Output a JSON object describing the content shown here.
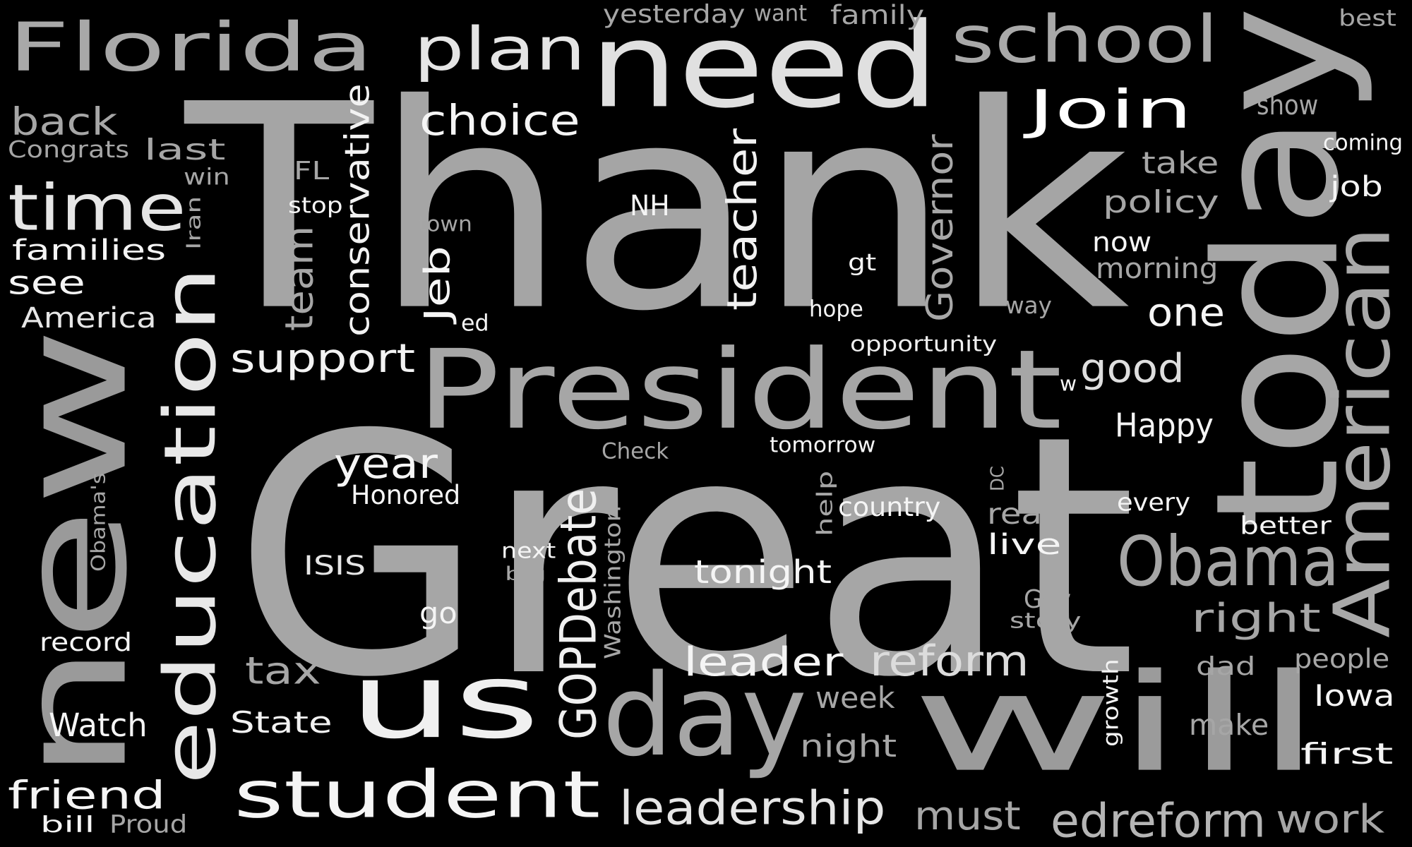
{
  "words": [
    {
      "text": "Thank",
      "color": "#a5a5a5"
    },
    {
      "text": "Great",
      "color": "#a6a6a6"
    },
    {
      "text": "need",
      "color": "#e0e0e0"
    },
    {
      "text": "new",
      "color": "#9a9a9a"
    },
    {
      "text": "today",
      "color": "#a6a6a6"
    },
    {
      "text": "will",
      "color": "#9b9b9b"
    },
    {
      "text": "President",
      "color": "#a6a6a6"
    },
    {
      "text": "us",
      "color": "#f0f0f0"
    },
    {
      "text": "education",
      "color": "#e8e8e8"
    },
    {
      "text": "student",
      "color": "#f5f5f5"
    },
    {
      "text": "day",
      "color": "#a6a6a6"
    },
    {
      "text": "American",
      "color": "#a9a9a9"
    },
    {
      "text": "Florida",
      "color": "#a8a8a8"
    },
    {
      "text": "school",
      "color": "#a9a9a9"
    },
    {
      "text": "plan",
      "color": "#e5e5e5"
    },
    {
      "text": "Join",
      "color": "#ffffff"
    },
    {
      "text": "Obama",
      "color": "#a5a5a5"
    },
    {
      "text": "time",
      "color": "#e6e6e6"
    },
    {
      "text": "GOPDebate",
      "color": "#f0f0f0"
    },
    {
      "text": "support",
      "color": "#f3f3f3"
    },
    {
      "text": "leader",
      "color": "#f5f5f5"
    },
    {
      "text": "reform",
      "color": "#dcdcdc"
    },
    {
      "text": "edreform",
      "color": "#b5b5b5"
    },
    {
      "text": "leadership",
      "color": "#e6e6e6"
    },
    {
      "text": "choice",
      "color": "#f5f5f5"
    },
    {
      "text": "back",
      "color": "#a6a6a6"
    },
    {
      "text": "teacher",
      "color": "#f2f2f2"
    },
    {
      "text": "conservative",
      "color": "#f2f2f2"
    },
    {
      "text": "Governor",
      "color": "#a8a8a8"
    },
    {
      "text": "team",
      "color": "#a6a6a6"
    },
    {
      "text": "friend",
      "color": "#f5f5f5"
    },
    {
      "text": "right",
      "color": "#a6a6a6"
    },
    {
      "text": "good",
      "color": "#dedede"
    },
    {
      "text": "one",
      "color": "#f5f5f5"
    },
    {
      "text": "year",
      "color": "#f5f5f5"
    },
    {
      "text": "must",
      "color": "#a6a6a6"
    },
    {
      "text": "work",
      "color": "#a6a6a6"
    },
    {
      "text": "Jeb",
      "color": "#f5f5f5"
    },
    {
      "text": "tax",
      "color": "#a6a6a6"
    },
    {
      "text": "see",
      "color": "#f5f5f5"
    },
    {
      "text": "families",
      "color": "#f5f5f5"
    },
    {
      "text": "America",
      "color": "#e6e6e6"
    },
    {
      "text": "last",
      "color": "#a6a6a6"
    },
    {
      "text": "Watch",
      "color": "#f5f5f5"
    },
    {
      "text": "State",
      "color": "#f2f2f2"
    },
    {
      "text": "tonight",
      "color": "#f5f5f5"
    },
    {
      "text": "night",
      "color": "#a6a6a6"
    },
    {
      "text": "week",
      "color": "#a6a6a6"
    },
    {
      "text": "Happy",
      "color": "#f5f5f5"
    },
    {
      "text": "Iowa",
      "color": "#f5f5f5"
    },
    {
      "text": "first",
      "color": "#f5f5f5"
    },
    {
      "text": "make",
      "color": "#a6a6a6"
    },
    {
      "text": "policy",
      "color": "#a6a6a6"
    },
    {
      "text": "take",
      "color": "#a6a6a6"
    },
    {
      "text": "now",
      "color": "#f5f5f5"
    },
    {
      "text": "morning",
      "color": "#a6a6a6"
    },
    {
      "text": "job",
      "color": "#f5f5f5"
    },
    {
      "text": "Washington",
      "color": "#a6a6a6"
    },
    {
      "text": "read",
      "color": "#a6a6a6"
    },
    {
      "text": "live",
      "color": "#f5f5f5"
    },
    {
      "text": "Honored",
      "color": "#f5f5f5"
    },
    {
      "text": "ISIS",
      "color": "#e6e6e6"
    },
    {
      "text": "go",
      "color": "#f5f5f5"
    },
    {
      "text": "NH",
      "color": "#f5f5f5"
    },
    {
      "text": "FL",
      "color": "#a6a6a6"
    },
    {
      "text": "Congrats",
      "color": "#a6a6a6"
    },
    {
      "text": "win",
      "color": "#a6a6a6"
    },
    {
      "text": "stop",
      "color": "#f5f5f5"
    },
    {
      "text": "Iran",
      "color": "#a6a6a6"
    },
    {
      "text": "town",
      "color": "#a6a6a6"
    },
    {
      "text": "gt",
      "color": "#f5f5f5"
    },
    {
      "text": "hope",
      "color": "#f5f5f5"
    },
    {
      "text": "ed",
      "color": "#f5f5f5"
    },
    {
      "text": "way",
      "color": "#a6a6a6"
    },
    {
      "text": "opportunity",
      "color": "#f0f0f0"
    },
    {
      "text": "w",
      "color": "#f5f5f5"
    },
    {
      "text": "Check",
      "color": "#a6a6a6"
    },
    {
      "text": "tomorrow",
      "color": "#f5f5f5"
    },
    {
      "text": "help",
      "color": "#a6a6a6"
    },
    {
      "text": "country",
      "color": "#f5f5f5"
    },
    {
      "text": "DC",
      "color": "#a6a6a6"
    },
    {
      "text": "every",
      "color": "#f5f5f5"
    },
    {
      "text": "better",
      "color": "#f5f5f5"
    },
    {
      "text": "next",
      "color": "#f5f5f5"
    },
    {
      "text": "big",
      "color": "#a6a6a6"
    },
    {
      "text": "Obama's",
      "color": "#a6a6a6"
    },
    {
      "text": "record",
      "color": "#f5f5f5"
    },
    {
      "text": "bill",
      "color": "#f5f5f5"
    },
    {
      "text": "Proud",
      "color": "#a6a6a6"
    },
    {
      "text": "Gov",
      "color": "#a6a6a6"
    },
    {
      "text": "story",
      "color": "#a6a6a6"
    },
    {
      "text": "dad",
      "color": "#a6a6a6"
    },
    {
      "text": "people",
      "color": "#a6a6a6"
    },
    {
      "text": "growth",
      "color": "#f5f5f5"
    },
    {
      "text": "yesterday",
      "color": "#a6a6a6"
    },
    {
      "text": "want",
      "color": "#a6a6a6"
    },
    {
      "text": "family",
      "color": "#a6a6a6"
    },
    {
      "text": "best",
      "color": "#a6a6a6"
    },
    {
      "text": "show",
      "color": "#a6a6a6"
    },
    {
      "text": "coming",
      "color": "#f5f5f5"
    }
  ]
}
